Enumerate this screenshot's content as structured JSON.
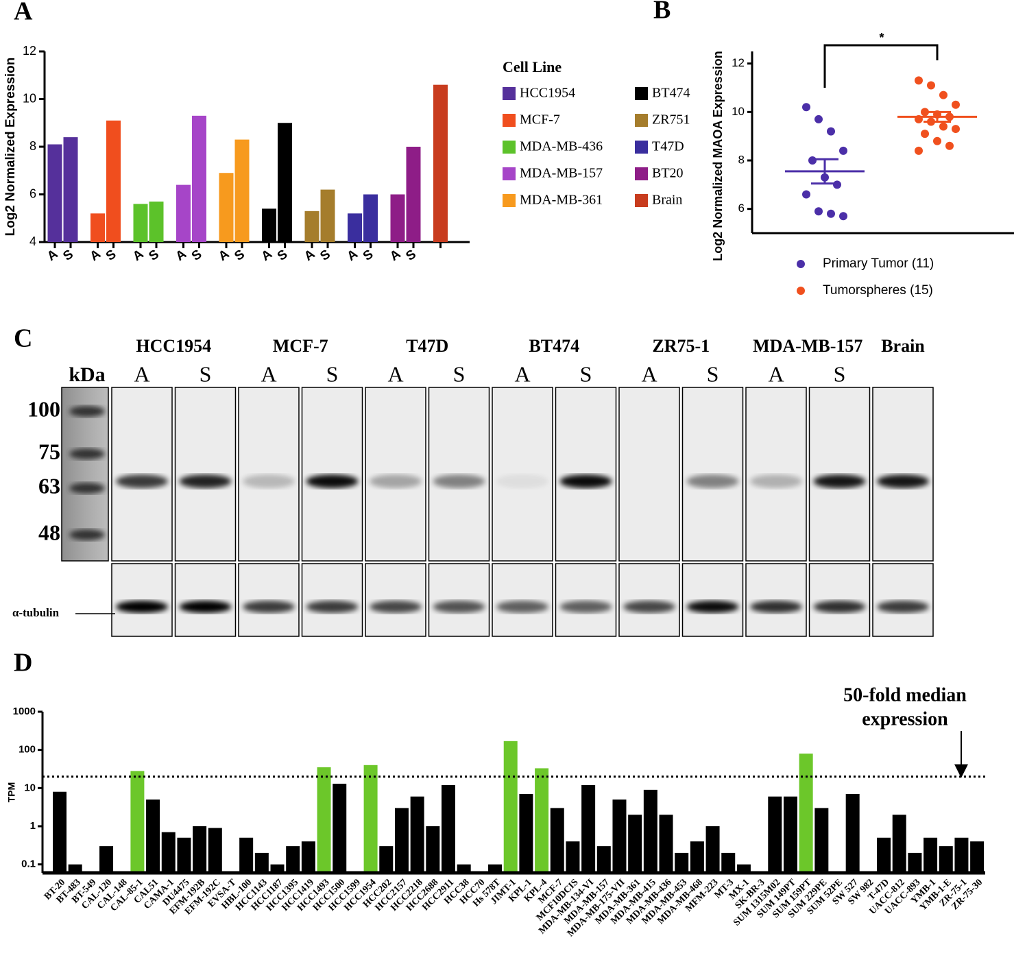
{
  "panel_labels": [
    "A",
    "B",
    "C",
    "D"
  ],
  "chart_data": [
    {
      "type": "bar",
      "ylabel": "Log2 Normalized Expression",
      "legend_title": "Cell Line",
      "ylim": [
        4,
        12
      ],
      "yticks": [
        4,
        6,
        8,
        10,
        12
      ],
      "categories": [
        "A",
        "S",
        "A",
        "S",
        "A",
        "S",
        "A",
        "S",
        "A",
        "S",
        "A",
        "S",
        "A",
        "S",
        "A",
        "S",
        "A",
        "S",
        null
      ],
      "series": [
        {
          "name": "HCC1954",
          "color": "#55309b",
          "values": [
            8.1,
            8.4,
            null,
            null,
            null,
            null,
            null,
            null,
            null,
            null,
            null,
            null,
            null,
            null,
            null,
            null,
            null,
            null,
            null
          ]
        },
        {
          "name": "MCF-7",
          "color": "#f04e1e",
          "values": [
            null,
            null,
            5.2,
            9.1,
            null,
            null,
            null,
            null,
            null,
            null,
            null,
            null,
            null,
            null,
            null,
            null,
            null,
            null,
            null
          ]
        },
        {
          "name": "MDA-MB-436",
          "color": "#5cc22a",
          "values": [
            null,
            null,
            null,
            null,
            5.6,
            5.7,
            null,
            null,
            null,
            null,
            null,
            null,
            null,
            null,
            null,
            null,
            null,
            null,
            null
          ]
        },
        {
          "name": "MDA-MB-157",
          "color": "#a645c8",
          "values": [
            null,
            null,
            null,
            null,
            null,
            null,
            6.4,
            9.3,
            null,
            null,
            null,
            null,
            null,
            null,
            null,
            null,
            null,
            null,
            null
          ]
        },
        {
          "name": "MDA-MB-361",
          "color": "#f79a1e",
          "values": [
            null,
            null,
            null,
            null,
            null,
            null,
            null,
            null,
            6.9,
            8.3,
            null,
            null,
            null,
            null,
            null,
            null,
            null,
            null,
            null
          ]
        },
        {
          "name": "BT474",
          "color": "#000000",
          "values": [
            null,
            null,
            null,
            null,
            null,
            null,
            null,
            null,
            null,
            null,
            5.4,
            9.0,
            null,
            null,
            null,
            null,
            null,
            null,
            null
          ]
        },
        {
          "name": "ZR751",
          "color": "#a57d2c",
          "values": [
            null,
            null,
            null,
            null,
            null,
            null,
            null,
            null,
            null,
            null,
            null,
            null,
            5.3,
            6.2,
            null,
            null,
            null,
            null,
            null
          ]
        },
        {
          "name": "T47D",
          "color": "#3a2e9e",
          "values": [
            null,
            null,
            null,
            null,
            null,
            null,
            null,
            null,
            null,
            null,
            null,
            null,
            null,
            null,
            5.2,
            6.0,
            null,
            null,
            null
          ]
        },
        {
          "name": "BT20",
          "color": "#8e1d87",
          "values": [
            null,
            null,
            null,
            null,
            null,
            null,
            null,
            null,
            null,
            null,
            null,
            null,
            null,
            null,
            null,
            null,
            6.0,
            8.0,
            null
          ]
        },
        {
          "name": "Brain",
          "color": "#c83c1e",
          "values": [
            null,
            null,
            null,
            null,
            null,
            null,
            null,
            null,
            null,
            null,
            null,
            null,
            null,
            null,
            null,
            null,
            null,
            null,
            10.6
          ]
        }
      ]
    },
    {
      "type": "strip",
      "ylabel": "Log2 Normalized MAOA Expression",
      "ylim": [
        5,
        12.5
      ],
      "yticks": [
        6,
        8,
        10,
        12
      ],
      "annotation": "*",
      "series": [
        {
          "name": "Primary Tumor (11)",
          "color": "#4b2fa8",
          "values": [
            10.2,
            9.7,
            9.2,
            8.4,
            8.0,
            7.3,
            7.0,
            6.6,
            5.9,
            5.8,
            5.7
          ],
          "mean": 7.55,
          "sem": 0.5
        },
        {
          "name": "Tumorspheres (15)",
          "color": "#f0501e",
          "values": [
            11.3,
            11.1,
            10.7,
            10.3,
            10.0,
            9.9,
            9.8,
            9.7,
            9.6,
            9.4,
            9.3,
            9.1,
            8.8,
            8.6,
            8.4
          ],
          "mean": 9.8,
          "sem": 0.2
        }
      ]
    },
    {
      "type": "logbar",
      "ylabel": "TPM",
      "log_scale": true,
      "ylim": [
        0.06,
        1000
      ],
      "yticks": [
        0.1,
        1,
        10,
        100,
        1000
      ],
      "color": "#000000",
      "highlight_color": "#6cc72a",
      "reference_line": {
        "value": 20,
        "label": [
          "50-fold median",
          "expression"
        ]
      },
      "categories": [
        "BT-20",
        "BT-483",
        "BT-549",
        "CAL-120",
        "CAL-148",
        "CAL-85-1",
        "CAL51",
        "CAMA-1",
        "DU4475",
        "EFM-192B",
        "EFM-192C",
        "EVSA-T",
        "HBL-100",
        "HCC1143",
        "HCC1187",
        "HCC1395",
        "HCC1419",
        "HCC1493",
        "HCC1500",
        "HCC1599",
        "HCC1954",
        "HCC202",
        "HCC2157",
        "HCC2218",
        "HCC2688",
        "HCC2911",
        "HCC38",
        "HCC70",
        "Hs 578T",
        "JIMT-1",
        "KPL-1",
        "KPL-4",
        "MCF-7",
        "MCF10DCIS",
        "MDA-MB-134-VI",
        "MDA-MB-157",
        "MDA-MB-175-VII",
        "MDA-MB-361",
        "MDA-MB-415",
        "MDA-MB-436",
        "MDA-MB-453",
        "MDA-MB-468",
        "MFM-223",
        "MT-3",
        "MX-1",
        "SK-BR-3",
        "SUM 1315M02",
        "SUM 149PT",
        "SUM 159PT",
        "SUM 229PE",
        "SUM 52PE",
        "SW 527",
        "SW 982",
        "T-47D",
        "UACC-812",
        "UACC-893",
        "YMB-1",
        "YMB-1-E",
        "ZR-75-1",
        "ZR-75-30"
      ],
      "values": [
        8,
        0.1,
        null,
        0.3,
        null,
        28,
        5,
        0.7,
        0.5,
        1,
        0.9,
        null,
        0.5,
        0.2,
        0.1,
        0.3,
        0.4,
        35,
        13,
        null,
        40,
        0.3,
        3,
        6,
        1,
        12,
        0.1,
        null,
        0.1,
        170,
        7,
        33,
        3,
        0.4,
        12,
        0.3,
        5,
        2,
        9,
        2,
        0.2,
        0.4,
        1,
        0.2,
        0.1,
        null,
        6,
        6,
        80,
        3,
        null,
        7,
        null,
        0.5,
        2,
        0.2,
        0.5,
        0.3,
        0.5,
        0.4
      ]
    }
  ],
  "blot": {
    "ladder_label": "kDa",
    "markers": [
      100,
      75,
      63,
      48
    ],
    "loading_control": "α-tubulin",
    "groups": [
      {
        "name": "HCC1954",
        "lanes": [
          "A",
          "S"
        ]
      },
      {
        "name": "MCF-7",
        "lanes": [
          "A",
          "S"
        ]
      },
      {
        "name": "T47D",
        "lanes": [
          "A",
          "S"
        ]
      },
      {
        "name": "BT474",
        "lanes": [
          "A",
          "S"
        ]
      },
      {
        "name": "ZR75-1",
        "lanes": [
          "A",
          "S"
        ]
      },
      {
        "name": "MDA-MB-157",
        "lanes": [
          "A",
          "S"
        ]
      },
      {
        "name": "Brain",
        "lanes": []
      }
    ]
  }
}
